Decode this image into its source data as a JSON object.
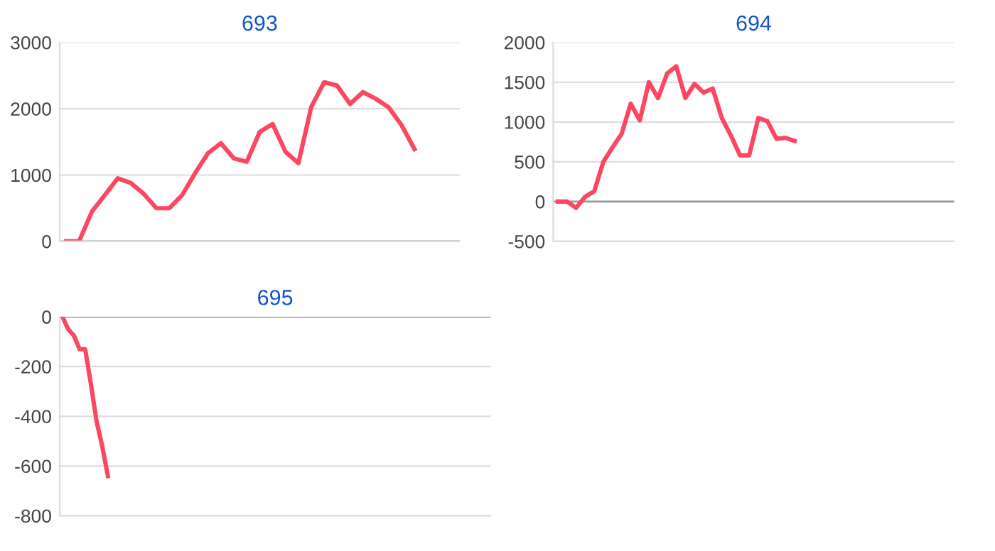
{
  "chart_data": [
    {
      "type": "line",
      "title": "693",
      "categories": [
        null,
        null,
        null,
        null,
        null,
        null,
        null,
        null,
        null,
        null,
        null,
        null,
        null,
        null,
        null,
        null,
        null,
        null,
        null,
        null,
        null,
        null,
        null,
        null,
        null,
        null,
        null,
        null,
        null,
        null,
        null
      ],
      "series": [
        {
          "color": "#fb4760",
          "values": [
            0,
            0,
            450,
            700,
            950,
            880,
            720,
            500,
            500,
            700,
            1030,
            1330,
            1480,
            1250,
            1200,
            1650,
            1770,
            1350,
            1180,
            2030,
            2400,
            2350,
            2070,
            2250,
            2150,
            2020,
            1750,
            1390,
            null,
            null,
            null
          ]
        }
      ],
      "ylim": [
        0,
        3000
      ],
      "yticks": [
        0,
        1000,
        2000,
        3000
      ],
      "grid": "y",
      "tick_labels": "y",
      "marker": "none",
      "line_style": "solid"
    },
    {
      "type": "line",
      "title": "694",
      "categories": [
        null,
        null,
        null,
        null,
        null,
        null,
        null,
        null,
        null,
        null,
        null,
        null,
        null,
        null,
        null,
        null,
        null,
        null,
        null,
        null,
        null,
        null,
        null,
        null,
        null,
        null,
        null,
        null,
        null,
        null,
        null,
        null,
        null,
        null,
        null,
        null,
        null,
        null,
        null,
        null,
        null,
        null,
        null,
        null
      ],
      "series": [
        {
          "color": "#fb4760",
          "values": [
            0,
            0,
            -80,
            60,
            130,
            500,
            680,
            850,
            1230,
            1020,
            1500,
            1300,
            1610,
            1700,
            1300,
            1480,
            1370,
            1420,
            1050,
            830,
            580,
            580,
            1050,
            1010,
            790,
            800,
            760,
            null,
            null,
            null,
            null,
            null,
            null,
            null,
            null,
            null,
            null,
            null,
            null,
            null,
            null,
            null,
            null,
            null
          ]
        }
      ],
      "ylim": [
        -500,
        2000
      ],
      "yticks": [
        -500,
        0,
        500,
        1000,
        1500,
        2000
      ],
      "grid": "y",
      "tick_labels": "y",
      "marker": "none",
      "line_style": "solid"
    },
    {
      "type": "line",
      "title": "695",
      "categories": [
        null,
        null,
        null,
        null,
        null,
        null,
        null,
        null,
        null,
        null,
        null,
        null,
        null,
        null,
        null,
        null,
        null,
        null,
        null,
        null,
        null,
        null,
        null,
        null,
        null,
        null,
        null,
        null,
        null,
        null,
        null,
        null,
        null,
        null,
        null,
        null,
        null,
        null,
        null,
        null,
        null,
        null,
        null,
        null,
        null,
        null,
        null,
        null,
        null,
        null,
        null,
        null,
        null,
        null,
        null,
        null,
        null,
        null,
        null,
        null,
        null,
        null,
        null,
        null,
        null,
        null,
        null,
        null,
        null,
        null,
        null,
        null,
        null,
        null,
        null,
        null
      ],
      "series": [
        {
          "color": "#fb4760",
          "values": [
            0,
            -50,
            -75,
            -130,
            -130,
            -270,
            -420,
            -520,
            -640,
            null,
            null,
            null,
            null,
            null,
            null,
            null,
            null,
            null,
            null,
            null,
            null,
            null,
            null,
            null,
            null,
            null,
            null,
            null,
            null,
            null,
            null,
            null,
            null,
            null,
            null,
            null,
            null,
            null,
            null,
            null,
            null,
            null,
            null,
            null,
            null,
            null,
            null,
            null,
            null,
            null,
            null,
            null,
            null,
            null,
            null,
            null,
            null,
            null,
            null,
            null,
            null,
            null,
            null,
            null,
            null,
            null,
            null,
            null,
            null,
            null,
            null,
            null,
            null,
            null,
            null,
            null
          ]
        }
      ],
      "ylim": [
        -800,
        0
      ],
      "yticks": [
        -800,
        -600,
        -400,
        -200,
        0
      ],
      "grid": "y",
      "tick_labels": "y",
      "marker": "none",
      "line_style": "solid"
    }
  ]
}
